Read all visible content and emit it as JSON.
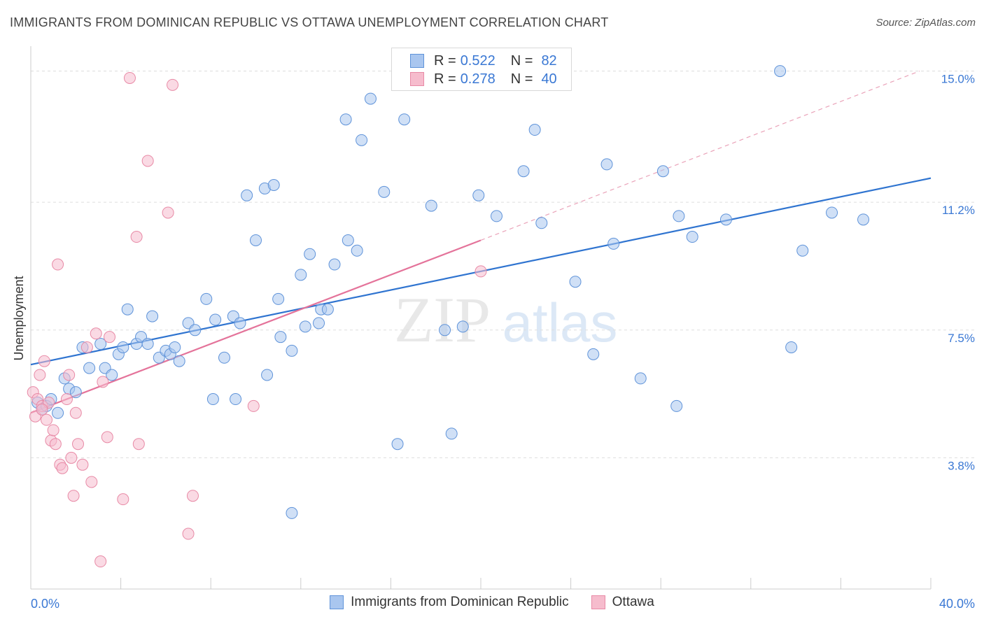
{
  "title": "IMMIGRANTS FROM DOMINICAN REPUBLIC VS OTTAWA UNEMPLOYMENT CORRELATION CHART",
  "source": "Source: ZipAtlas.com",
  "watermark": {
    "zip": "ZIP",
    "atlas": "atlas"
  },
  "legend": [
    {
      "r_label": "R =",
      "r_value": "0.522",
      "n_label": "N =",
      "n_value": "82"
    },
    {
      "r_label": "R =",
      "r_value": "0.278",
      "n_label": "N =",
      "n_value": "40"
    }
  ],
  "colors": {
    "blue_fill": "#a9c6ef",
    "blue_stroke": "#5f93d9",
    "blue_line": "#2f74d0",
    "pink_fill": "#f6bccd",
    "pink_stroke": "#e88aa6",
    "pink_line": "#e4739a",
    "tick_label": "#3a78d4",
    "grid": "#dddddd"
  },
  "chart_data": {
    "type": "scatter",
    "title": "IMMIGRANTS FROM DOMINICAN REPUBLIC VS OTTAWA UNEMPLOYMENT CORRELATION CHART",
    "xlabel": "",
    "ylabel": "Unemployment",
    "xlim": [
      0,
      40
    ],
    "ylim": [
      0,
      15.6
    ],
    "x_tick_labels": [
      "0.0%",
      "40.0%"
    ],
    "y_ticks": [
      3.8,
      7.5,
      11.2,
      15.0
    ],
    "y_tick_labels": [
      "3.8%",
      "7.5%",
      "11.2%",
      "15.0%"
    ],
    "grid": "horizontal dashed",
    "legend_position": "bottom-center",
    "series": [
      {
        "name": "Immigrants from Dominican Republic",
        "color": "#a9c6ef",
        "trend": {
          "x": [
            0,
            40
          ],
          "y": [
            6.5,
            11.9
          ]
        },
        "points": [
          [
            0.3,
            5.4
          ],
          [
            0.5,
            5.2
          ],
          [
            0.7,
            5.3
          ],
          [
            0.9,
            5.5
          ],
          [
            1.2,
            5.1
          ],
          [
            1.5,
            6.1
          ],
          [
            1.7,
            5.8
          ],
          [
            2.0,
            5.7
          ],
          [
            2.3,
            7.0
          ],
          [
            2.6,
            6.4
          ],
          [
            3.1,
            7.1
          ],
          [
            3.3,
            6.4
          ],
          [
            3.6,
            6.2
          ],
          [
            3.9,
            6.8
          ],
          [
            4.1,
            7.0
          ],
          [
            4.3,
            8.1
          ],
          [
            4.7,
            7.1
          ],
          [
            4.9,
            7.3
          ],
          [
            5.2,
            7.1
          ],
          [
            5.4,
            7.9
          ],
          [
            5.7,
            6.7
          ],
          [
            6.0,
            6.9
          ],
          [
            6.2,
            6.8
          ],
          [
            6.4,
            7.0
          ],
          [
            6.6,
            6.6
          ],
          [
            7.0,
            7.7
          ],
          [
            7.3,
            7.5
          ],
          [
            7.8,
            8.4
          ],
          [
            8.2,
            7.8
          ],
          [
            8.1,
            5.5
          ],
          [
            8.6,
            6.7
          ],
          [
            9.0,
            7.9
          ],
          [
            9.1,
            5.5
          ],
          [
            9.3,
            7.7
          ],
          [
            9.6,
            11.4
          ],
          [
            10.0,
            10.1
          ],
          [
            10.4,
            11.6
          ],
          [
            10.8,
            11.7
          ],
          [
            10.5,
            6.2
          ],
          [
            11.0,
            8.4
          ],
          [
            11.1,
            7.3
          ],
          [
            11.6,
            6.9
          ],
          [
            12.0,
            9.1
          ],
          [
            12.2,
            7.6
          ],
          [
            12.4,
            9.7
          ],
          [
            12.8,
            7.7
          ],
          [
            12.9,
            8.1
          ],
          [
            13.2,
            8.1
          ],
          [
            13.5,
            9.4
          ],
          [
            14.0,
            13.6
          ],
          [
            14.1,
            10.1
          ],
          [
            14.5,
            9.8
          ],
          [
            14.7,
            13.0
          ],
          [
            15.7,
            11.5
          ],
          [
            16.3,
            4.2
          ],
          [
            16.6,
            13.6
          ],
          [
            17.8,
            11.1
          ],
          [
            18.4,
            7.5
          ],
          [
            18.7,
            4.5
          ],
          [
            19.2,
            7.6
          ],
          [
            19.9,
            11.4
          ],
          [
            20.7,
            10.8
          ],
          [
            21.9,
            12.1
          ],
          [
            22.4,
            13.3
          ],
          [
            22.7,
            10.6
          ],
          [
            24.2,
            8.9
          ],
          [
            25.0,
            6.8
          ],
          [
            25.6,
            12.3
          ],
          [
            25.9,
            10.0
          ],
          [
            27.1,
            6.1
          ],
          [
            28.1,
            12.1
          ],
          [
            28.7,
            5.3
          ],
          [
            28.8,
            10.8
          ],
          [
            29.4,
            10.2
          ],
          [
            30.9,
            10.7
          ],
          [
            33.3,
            15.0
          ],
          [
            33.8,
            7.0
          ],
          [
            34.3,
            9.8
          ],
          [
            35.6,
            10.9
          ],
          [
            37.0,
            10.7
          ],
          [
            11.6,
            2.2
          ],
          [
            15.1,
            14.2
          ]
        ]
      },
      {
        "name": "Ottawa",
        "color": "#f6bccd",
        "trend": {
          "x": [
            0,
            20
          ],
          "y": [
            5.1,
            10.1
          ]
        },
        "trend_extension": {
          "x": [
            20,
            39.5
          ],
          "y": [
            10.1,
            15.0
          ]
        },
        "points": [
          [
            0.1,
            5.7
          ],
          [
            0.2,
            5.0
          ],
          [
            0.3,
            5.5
          ],
          [
            0.4,
            6.2
          ],
          [
            0.5,
            5.3
          ],
          [
            0.6,
            6.6
          ],
          [
            0.7,
            4.9
          ],
          [
            0.8,
            5.4
          ],
          [
            0.9,
            4.3
          ],
          [
            1.0,
            4.6
          ],
          [
            1.1,
            4.2
          ],
          [
            1.2,
            9.4
          ],
          [
            1.3,
            3.6
          ],
          [
            1.4,
            3.5
          ],
          [
            1.6,
            5.5
          ],
          [
            1.7,
            6.2
          ],
          [
            1.8,
            3.8
          ],
          [
            1.9,
            2.7
          ],
          [
            2.0,
            5.1
          ],
          [
            2.1,
            4.2
          ],
          [
            2.3,
            3.6
          ],
          [
            2.5,
            7.0
          ],
          [
            2.7,
            3.1
          ],
          [
            2.9,
            7.4
          ],
          [
            3.1,
            0.8
          ],
          [
            3.2,
            6.0
          ],
          [
            3.4,
            4.4
          ],
          [
            3.5,
            7.3
          ],
          [
            4.1,
            2.6
          ],
          [
            4.4,
            14.8
          ],
          [
            4.7,
            10.2
          ],
          [
            4.8,
            4.2
          ],
          [
            5.2,
            12.4
          ],
          [
            6.1,
            10.9
          ],
          [
            6.3,
            14.6
          ],
          [
            7.0,
            1.6
          ],
          [
            7.2,
            2.7
          ],
          [
            9.9,
            5.3
          ],
          [
            20.0,
            9.2
          ],
          [
            0.5,
            5.2
          ]
        ]
      }
    ]
  }
}
